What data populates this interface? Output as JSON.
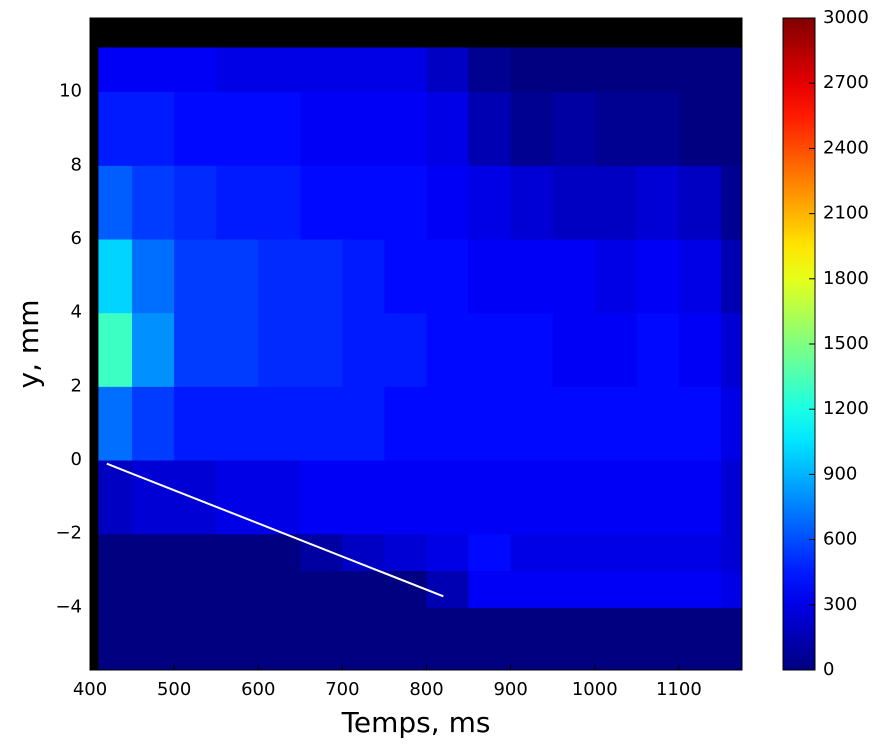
{
  "chart_data": {
    "type": "heatmap",
    "x_label": "Temps, ms",
    "y_label": "y, mm",
    "xlim": [
      400,
      1175
    ],
    "ylim": [
      -5.7,
      12
    ],
    "xticks": [
      400,
      500,
      600,
      700,
      800,
      900,
      1000,
      1100
    ],
    "yticks": [
      {
        "value": -4,
        "label": "−4"
      },
      {
        "value": -2,
        "label": "−2"
      },
      0,
      2,
      4,
      6,
      8,
      10
    ],
    "x_bins": [
      410,
      450,
      500,
      550,
      600,
      650,
      700,
      750,
      800,
      850,
      900,
      950,
      1000,
      1050,
      1100,
      1150,
      1175
    ],
    "y_bins": [
      -5.7,
      -4,
      -3,
      -2,
      0,
      2,
      4,
      6,
      8,
      10,
      11.2
    ],
    "z": [
      [
        0,
        0,
        0,
        0,
        0,
        0,
        0,
        0,
        0,
        0,
        0,
        0,
        0,
        0,
        0,
        0
      ],
      [
        0,
        0,
        0,
        0,
        0,
        0,
        0,
        0,
        150,
        350,
        350,
        350,
        350,
        350,
        350,
        300
      ],
      [
        0,
        0,
        0,
        0,
        0,
        100,
        200,
        250,
        300,
        400,
        300,
        300,
        300,
        300,
        300,
        250
      ],
      [
        200,
        250,
        250,
        300,
        300,
        350,
        350,
        350,
        350,
        350,
        350,
        350,
        350,
        350,
        350,
        250
      ],
      [
        700,
        550,
        450,
        450,
        450,
        450,
        450,
        400,
        400,
        400,
        400,
        400,
        400,
        400,
        400,
        300
      ],
      [
        1300,
        800,
        550,
        550,
        500,
        500,
        450,
        450,
        400,
        400,
        400,
        350,
        350,
        400,
        350,
        250
      ],
      [
        1000,
        700,
        550,
        550,
        500,
        500,
        450,
        400,
        400,
        350,
        350,
        350,
        300,
        350,
        300,
        150
      ],
      [
        650,
        550,
        500,
        450,
        450,
        400,
        400,
        400,
        350,
        300,
        250,
        200,
        200,
        250,
        200,
        50
      ],
      [
        450,
        450,
        400,
        400,
        400,
        350,
        350,
        350,
        300,
        150,
        50,
        100,
        50,
        50,
        0,
        0
      ],
      [
        350,
        350,
        350,
        300,
        300,
        300,
        300,
        300,
        200,
        50,
        0,
        0,
        0,
        0,
        0,
        0
      ]
    ],
    "clim": [
      0,
      3000
    ],
    "colorbar_ticks": [
      0,
      300,
      600,
      900,
      1200,
      1500,
      1800,
      2100,
      2400,
      2700,
      3000
    ],
    "colormap": "jet",
    "background": "#000000",
    "lines": [
      {
        "color": "#ffffff",
        "x": [
          420,
          820
        ],
        "y": [
          -0.1,
          -3.7
        ]
      }
    ]
  }
}
